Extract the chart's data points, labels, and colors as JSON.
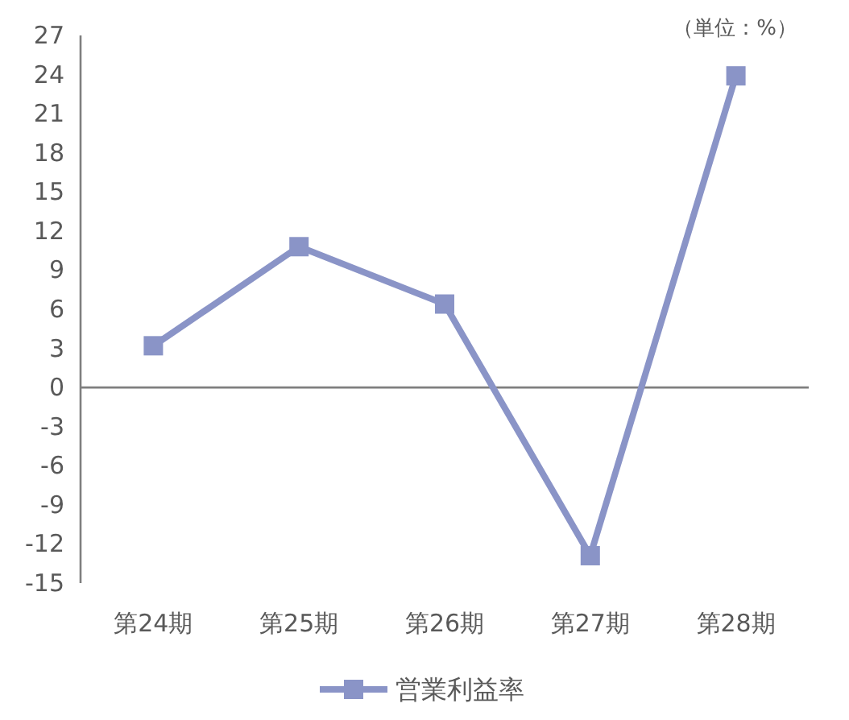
{
  "chart_data": {
    "type": "line",
    "categories": [
      "第24期",
      "第25期",
      "第26期",
      "第27期",
      "第28期"
    ],
    "series": [
      {
        "name": "営業利益率",
        "color": "#8a94c7",
        "values": [
          3.2,
          10.8,
          6.4,
          -12.9,
          23.9
        ]
      }
    ],
    "ylim": [
      -15,
      27
    ],
    "yticks": [
      -15,
      -12,
      -9,
      -6,
      -3,
      0,
      3,
      6,
      9,
      12,
      15,
      18,
      21,
      24,
      27
    ],
    "annotations": [
      "（単位：%）"
    ],
    "legend": "bottom",
    "marker": "square",
    "line_style": "solid"
  }
}
